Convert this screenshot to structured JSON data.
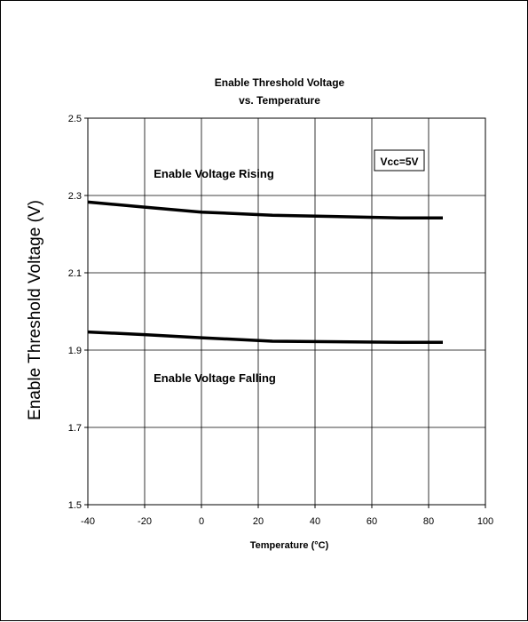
{
  "chart_data": {
    "type": "line",
    "title_line1": "Enable Threshold Voltage",
    "title_line2": "vs. Temperature",
    "xlabel": "Temperature (°C)",
    "ylabel": "Enable Threshold Voltage (V)",
    "xlim": [
      -40,
      100
    ],
    "ylim": [
      1.5,
      2.5
    ],
    "xticks": [
      -40,
      -20,
      0,
      20,
      40,
      60,
      80,
      100
    ],
    "yticks": [
      "1.5",
      "1.7",
      "1.9",
      "2.1",
      "2.3",
      "2.5"
    ],
    "grid": true,
    "series": [
      {
        "name": "Enable Voltage Rising",
        "x": [
          -40,
          -20,
          0,
          25,
          70,
          85
        ],
        "y": [
          2.283,
          2.27,
          2.257,
          2.249,
          2.242,
          2.242
        ]
      },
      {
        "name": "Enable Voltage Falling",
        "x": [
          -40,
          -20,
          0,
          25,
          70,
          85
        ],
        "y": [
          1.947,
          1.94,
          1.932,
          1.923,
          1.92,
          1.92
        ]
      }
    ],
    "annotations": {
      "rising": "Enable Voltage Rising",
      "falling": "Enable Voltage Falling",
      "condition": "Vcc=5V"
    }
  }
}
